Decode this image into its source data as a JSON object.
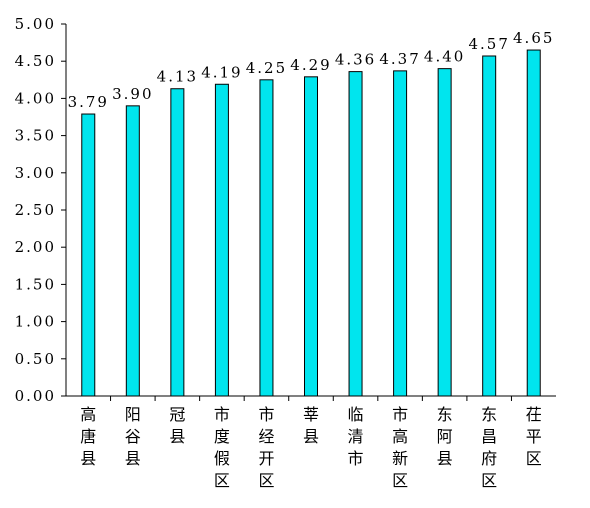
{
  "chart_data": {
    "type": "bar",
    "title": "",
    "xlabel": "",
    "ylabel": "",
    "ylim": [
      0,
      5
    ],
    "yticks": [
      0,
      0.5,
      1,
      1.5,
      2,
      2.5,
      3,
      3.5,
      4,
      4.5,
      5
    ],
    "ytick_labels": [
      "0.00",
      "0.50",
      "1.00",
      "1.50",
      "2.00",
      "2.50",
      "3.00",
      "3.50",
      "4.00",
      "4.50",
      "5.00"
    ],
    "categories": [
      "高唐县",
      "阳谷县",
      "冠县",
      "市度假区",
      "市经开区",
      "莘县",
      "临清市",
      "市高新区",
      "东阿县",
      "东昌府区",
      "茌平区"
    ],
    "values": [
      3.79,
      3.9,
      4.13,
      4.19,
      4.25,
      4.29,
      4.36,
      4.37,
      4.4,
      4.57,
      4.65
    ],
    "value_labels": [
      "3.79",
      "3.90",
      "4.13",
      "4.19",
      "4.25",
      "4.29",
      "4.36",
      "4.37",
      "4.40",
      "4.57",
      "4.65"
    ],
    "grid": false,
    "legend": "none",
    "bar_color": "#00E5EE",
    "bar_edge_color": "#000000"
  }
}
